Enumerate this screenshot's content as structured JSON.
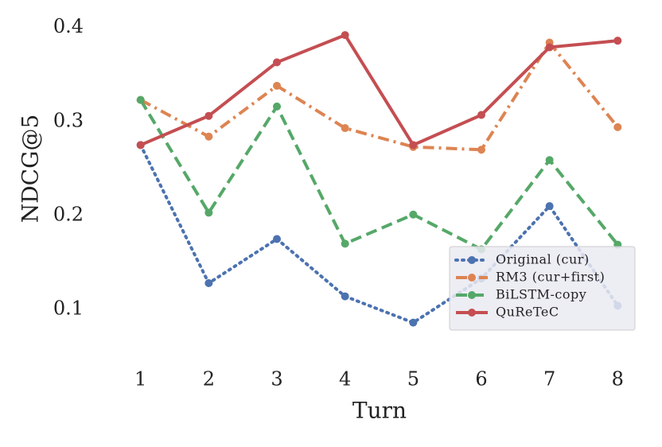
{
  "chart_data": {
    "type": "line",
    "xlabel": "Turn",
    "ylabel": "NDCG@5",
    "x": [
      1,
      2,
      3,
      4,
      5,
      6,
      7,
      8
    ],
    "xlim": [
      0.7,
      8.3
    ],
    "xticks": [
      1,
      2,
      3,
      4,
      5,
      6,
      7,
      8
    ],
    "ylim": [
      0.04,
      0.42
    ],
    "yticks": [
      0.1,
      0.2,
      0.3,
      0.4
    ],
    "grid": false,
    "legend_position": "lower right",
    "series": [
      {
        "name": "Original (cur)",
        "color": "#4c72b0",
        "linestyle": "dotted",
        "values": [
          0.275,
          0.128,
          0.175,
          0.114,
          0.086,
          0.133,
          0.21,
          0.104
        ]
      },
      {
        "name": "RM3 (cur+first)",
        "color": "#dd8452",
        "linestyle": "dashdot",
        "values": [
          0.323,
          0.284,
          0.338,
          0.293,
          0.273,
          0.27,
          0.384,
          0.294
        ]
      },
      {
        "name": "BiLSTM-copy",
        "color": "#55a868",
        "linestyle": "dashed",
        "values": [
          0.323,
          0.203,
          0.316,
          0.17,
          0.201,
          0.164,
          0.259,
          0.169
        ]
      },
      {
        "name": "QuReTeC",
        "color": "#c44e52",
        "linestyle": "solid",
        "values": [
          0.275,
          0.306,
          0.363,
          0.392,
          0.275,
          0.307,
          0.379,
          0.386
        ]
      }
    ]
  }
}
